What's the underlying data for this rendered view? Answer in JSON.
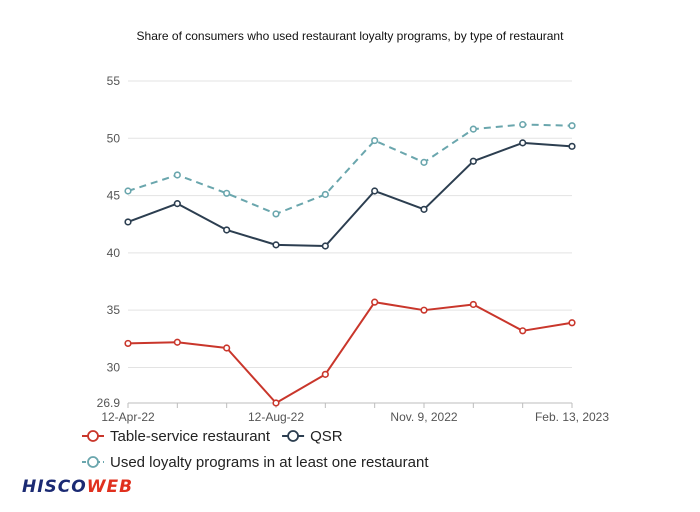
{
  "colors": {
    "table_service": "#c9362b",
    "qsr": "#2c3e50",
    "any_restaurant": "#6aa6ad"
  },
  "logo": {
    "text": "HISCOWEB",
    "part1": "HISCO",
    "part2": "WEB"
  },
  "chart_data": {
    "type": "line",
    "title": "Share of consumers who used restaurant loyalty programs, by type of restaurant",
    "xlabel": "",
    "ylabel": "",
    "ylim": [
      26.9,
      55
    ],
    "y_ticks": [
      26.9,
      30,
      35,
      40,
      45,
      50,
      55
    ],
    "x_tick_labels": [
      "12-Apr-22",
      "12-Aug-22",
      "Nov. 9, 2022",
      "Feb. 13, 2023"
    ],
    "x_tick_index": [
      0,
      3,
      6,
      9
    ],
    "point_count": 10,
    "grid": true,
    "legend_position": "bottom-left",
    "series": [
      {
        "name": "Table-service restaurant",
        "color_key": "table_service",
        "dashed": false,
        "values": [
          32.1,
          32.2,
          31.7,
          26.9,
          29.4,
          35.7,
          35.0,
          35.5,
          33.2,
          33.9
        ]
      },
      {
        "name": "QSR",
        "color_key": "qsr",
        "dashed": false,
        "values": [
          42.7,
          44.3,
          42.0,
          40.7,
          40.6,
          45.4,
          43.8,
          48.0,
          49.6,
          49.3
        ]
      },
      {
        "name": "Used loyalty programs in at least one restaurant",
        "color_key": "any_restaurant",
        "dashed": true,
        "values": [
          45.4,
          46.8,
          45.2,
          43.4,
          45.1,
          49.8,
          47.9,
          50.8,
          51.2,
          51.1
        ]
      }
    ]
  }
}
